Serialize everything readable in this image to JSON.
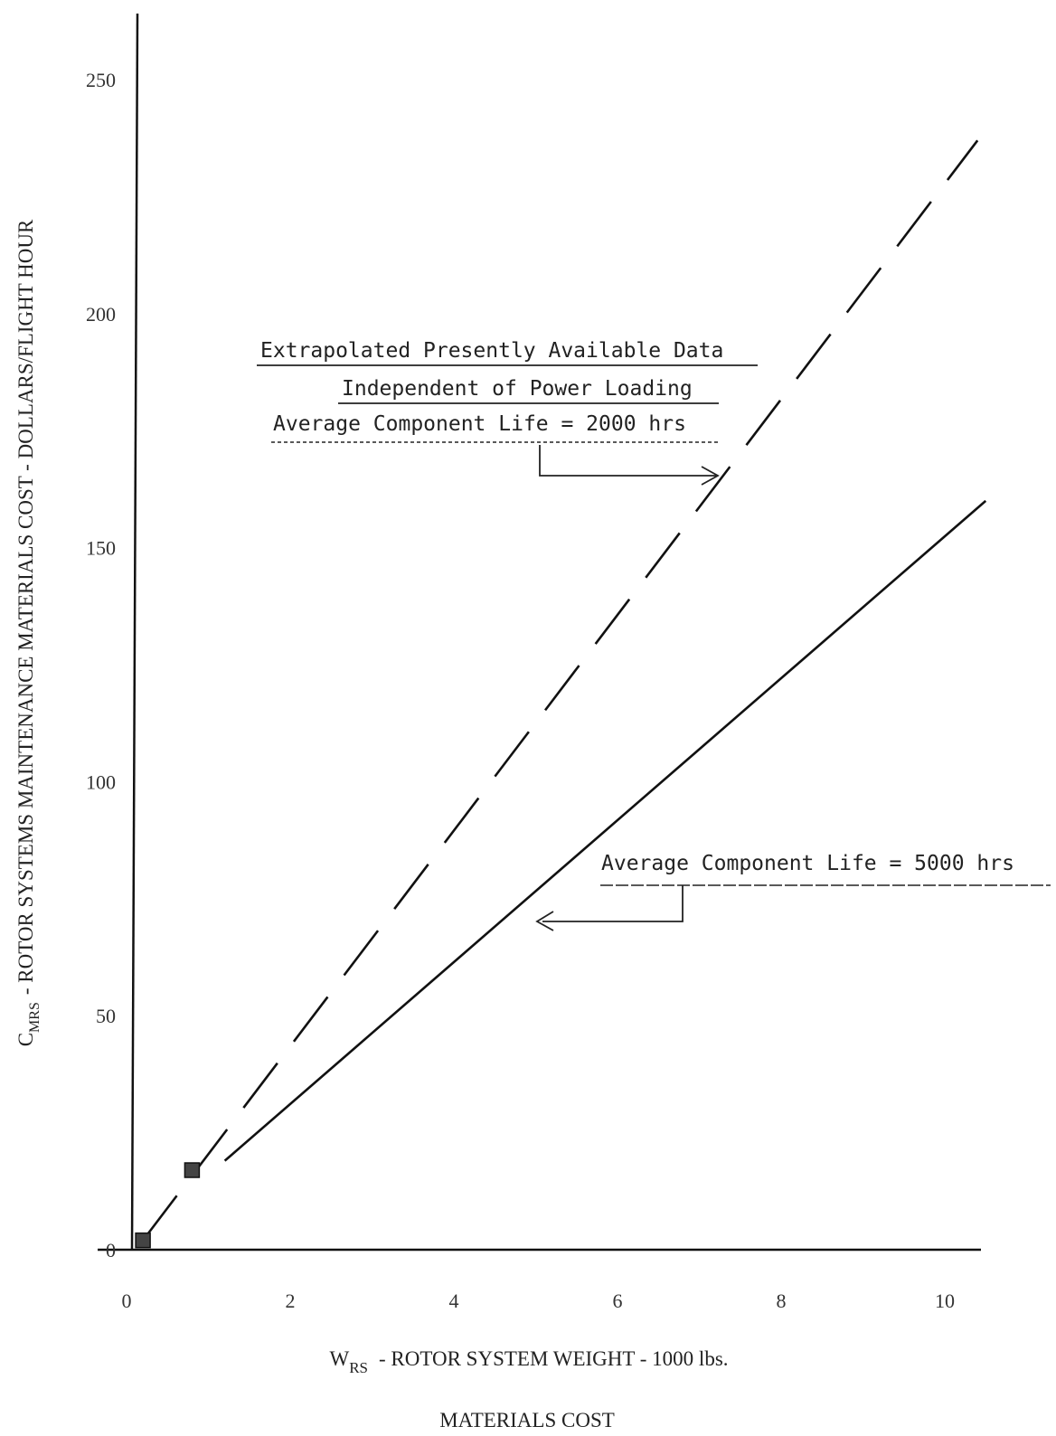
{
  "chart_data": {
    "type": "line",
    "title": "MATERIALS COST",
    "xlabel": {
      "main": "W",
      "subscript": "RS",
      "rest": "- ROTOR SYSTEM WEIGHT - 1000 lbs."
    },
    "ylabel": {
      "main": "C",
      "subscript": "MRS",
      "rest": "- ROTOR SYSTEMS MAINTENANCE MATERIALS COST - DOLLARS/FLIGHT HOUR"
    },
    "xlim": [
      0,
      10
    ],
    "ylim": [
      0,
      250
    ],
    "x_ticks": [
      "0",
      "2",
      "4",
      "6",
      "8",
      "10"
    ],
    "y_ticks": [
      "0",
      "50",
      "100",
      "150",
      "200",
      "250"
    ],
    "grid": false,
    "series": [
      {
        "name": "Average Component Life = 2000 hrs",
        "style": "dashed",
        "x": [
          0.2,
          10.4
        ],
        "y": [
          2,
          237
        ]
      },
      {
        "name": "Average Component Life = 5000 hrs",
        "style": "solid",
        "x": [
          1.2,
          10.5
        ],
        "y": [
          19,
          160
        ]
      }
    ],
    "markers": [
      {
        "x": 0.2,
        "y": 2
      },
      {
        "x": 0.8,
        "y": 17
      }
    ],
    "annotations": [
      {
        "lines": [
          "Extrapolated Presently Available Data",
          "Independent of Power Loading",
          "Average Component Life = 2000 hrs"
        ]
      },
      {
        "lines": [
          "Average Component Life = 5000 hrs"
        ]
      }
    ],
    "colors": {
      "ink": "#111111",
      "background": "#ffffff"
    }
  }
}
